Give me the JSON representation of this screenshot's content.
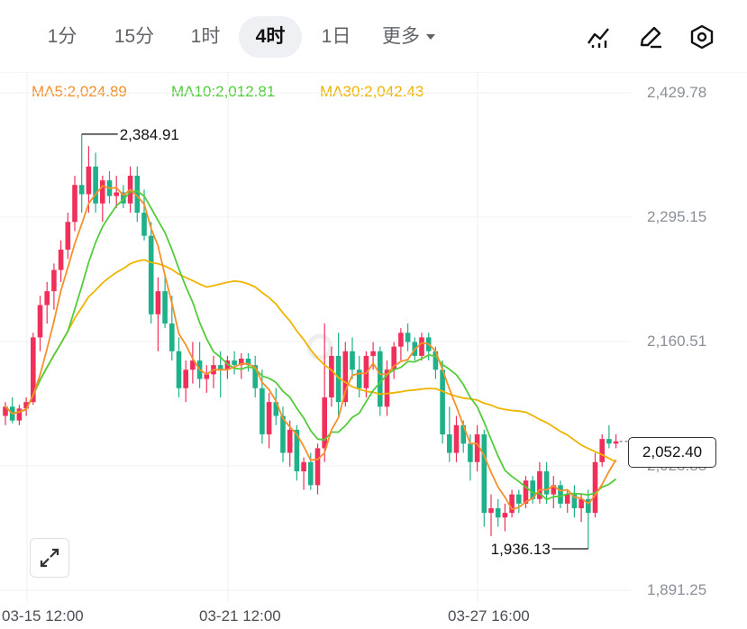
{
  "toolbar": {
    "intervals": [
      "1分",
      "15分",
      "1时",
      "4时",
      "1日"
    ],
    "active_interval": "4时",
    "more_label": "更多",
    "icons": [
      "indicator-icon",
      "draw-pencil-icon",
      "settings-hex-icon"
    ]
  },
  "ma_legend": {
    "ma5": "MA5:2,024.89",
    "ma10": "MA10:2,012.81",
    "ma30": "MA30:2,042.43"
  },
  "colors": {
    "ma5": "#f5902a",
    "ma10": "#52cc3a",
    "ma30": "#f0b400",
    "up": "#f0305a",
    "down": "#1fb18a"
  },
  "price_axis": {
    "labels": [
      "2,429.78",
      "2,295.15",
      "2,160.51",
      "2,025.88",
      "1,891.25"
    ]
  },
  "time_axis": {
    "labels": [
      "03-15 12:00",
      "03-21 12:00",
      "03-27 16:00"
    ]
  },
  "current_price": "2,052.40",
  "annotations": {
    "high": "2,384.91",
    "low": "1,936.13"
  },
  "chart_data": {
    "type": "candlestick",
    "ylim": [
      1891.25,
      2429.78
    ],
    "candles": [
      [
        2080,
        2095,
        2070,
        2090
      ],
      [
        2090,
        2100,
        2072,
        2075
      ],
      [
        2075,
        2092,
        2070,
        2088
      ],
      [
        2088,
        2100,
        2080,
        2095
      ],
      [
        2095,
        2170,
        2092,
        2165
      ],
      [
        2165,
        2210,
        2150,
        2200
      ],
      [
        2200,
        2225,
        2180,
        2215
      ],
      [
        2215,
        2245,
        2195,
        2238
      ],
      [
        2238,
        2270,
        2225,
        2260
      ],
      [
        2260,
        2300,
        2250,
        2290
      ],
      [
        2290,
        2340,
        2280,
        2330
      ],
      [
        2330,
        2385,
        2300,
        2320
      ],
      [
        2320,
        2372,
        2300,
        2350
      ],
      [
        2350,
        2365,
        2300,
        2310
      ],
      [
        2310,
        2340,
        2290,
        2335
      ],
      [
        2335,
        2345,
        2310,
        2318
      ],
      [
        2318,
        2340,
        2305,
        2322
      ],
      [
        2322,
        2330,
        2305,
        2310
      ],
      [
        2310,
        2350,
        2300,
        2340
      ],
      [
        2340,
        2350,
        2290,
        2300
      ],
      [
        2300,
        2325,
        2270,
        2275
      ],
      [
        2275,
        2290,
        2180,
        2190
      ],
      [
        2190,
        2230,
        2150,
        2215
      ],
      [
        2215,
        2230,
        2175,
        2180
      ],
      [
        2180,
        2210,
        2140,
        2150
      ],
      [
        2150,
        2165,
        2100,
        2110
      ],
      [
        2110,
        2140,
        2095,
        2130
      ],
      [
        2130,
        2160,
        2115,
        2140
      ],
      [
        2140,
        2160,
        2110,
        2120
      ],
      [
        2120,
        2135,
        2105,
        2125
      ],
      [
        2125,
        2145,
        2110,
        2135
      ],
      [
        2135,
        2150,
        2100,
        2130
      ],
      [
        2130,
        2145,
        2120,
        2140
      ],
      [
        2140,
        2150,
        2125,
        2135
      ],
      [
        2135,
        2148,
        2120,
        2142
      ],
      [
        2142,
        2148,
        2128,
        2135
      ],
      [
        2135,
        2145,
        2100,
        2110
      ],
      [
        2110,
        2130,
        2050,
        2060
      ],
      [
        2060,
        2105,
        2045,
        2095
      ],
      [
        2095,
        2110,
        2070,
        2080
      ],
      [
        2080,
        2090,
        2030,
        2040
      ],
      [
        2040,
        2075,
        2025,
        2065
      ],
      [
        2065,
        2070,
        2010,
        2020
      ],
      [
        2020,
        2035,
        2000,
        2030
      ],
      [
        2030,
        2040,
        2000,
        2005
      ],
      [
        2005,
        2050,
        1995,
        2045
      ],
      [
        2045,
        2180,
        2030,
        2100
      ],
      [
        2100,
        2155,
        2090,
        2145
      ],
      [
        2145,
        2170,
        2080,
        2095
      ],
      [
        2095,
        2160,
        2090,
        2150
      ],
      [
        2150,
        2165,
        2120,
        2130
      ],
      [
        2130,
        2145,
        2100,
        2110
      ],
      [
        2110,
        2150,
        2100,
        2145
      ],
      [
        2145,
        2160,
        2130,
        2150
      ],
      [
        2150,
        2155,
        2080,
        2090
      ],
      [
        2090,
        2140,
        2080,
        2130
      ],
      [
        2130,
        2160,
        2120,
        2155
      ],
      [
        2155,
        2175,
        2140,
        2170
      ],
      [
        2170,
        2180,
        2150,
        2160
      ],
      [
        2160,
        2165,
        2140,
        2145
      ],
      [
        2145,
        2170,
        2140,
        2165
      ],
      [
        2165,
        2170,
        2140,
        2150
      ],
      [
        2150,
        2155,
        2120,
        2130
      ],
      [
        2130,
        2140,
        2050,
        2060
      ],
      [
        2060,
        2090,
        2030,
        2040
      ],
      [
        2040,
        2080,
        2030,
        2070
      ],
      [
        2070,
        2075,
        2040,
        2050
      ],
      [
        2050,
        2060,
        2010,
        2030
      ],
      [
        2030,
        2070,
        2020,
        2060
      ],
      [
        2060,
        2065,
        1960,
        1975
      ],
      [
        1975,
        1995,
        1950,
        1980
      ],
      [
        1980,
        1990,
        1960,
        1970
      ],
      [
        1970,
        1985,
        1955,
        1975
      ],
      [
        1975,
        2000,
        1970,
        1995
      ],
      [
        1995,
        2000,
        1975,
        1985
      ],
      [
        1985,
        2015,
        1980,
        2010
      ],
      [
        2010,
        2015,
        1985,
        1990
      ],
      [
        1990,
        2030,
        1985,
        2020
      ],
      [
        2020,
        2030,
        1985,
        1995
      ],
      [
        1995,
        2015,
        1980,
        2005
      ],
      [
        2005,
        2010,
        1980,
        1985
      ],
      [
        1985,
        2000,
        1975,
        1995
      ],
      [
        1995,
        2005,
        1970,
        1980
      ],
      [
        1980,
        1995,
        1965,
        1990
      ],
      [
        1990,
        2000,
        1936.13,
        1975
      ],
      [
        1975,
        2040,
        1970,
        2030
      ],
      [
        2030,
        2060,
        2025,
        2055
      ],
      [
        2055,
        2070,
        2045,
        2050
      ],
      [
        2050,
        2060,
        2045,
        2052.4
      ]
    ]
  }
}
